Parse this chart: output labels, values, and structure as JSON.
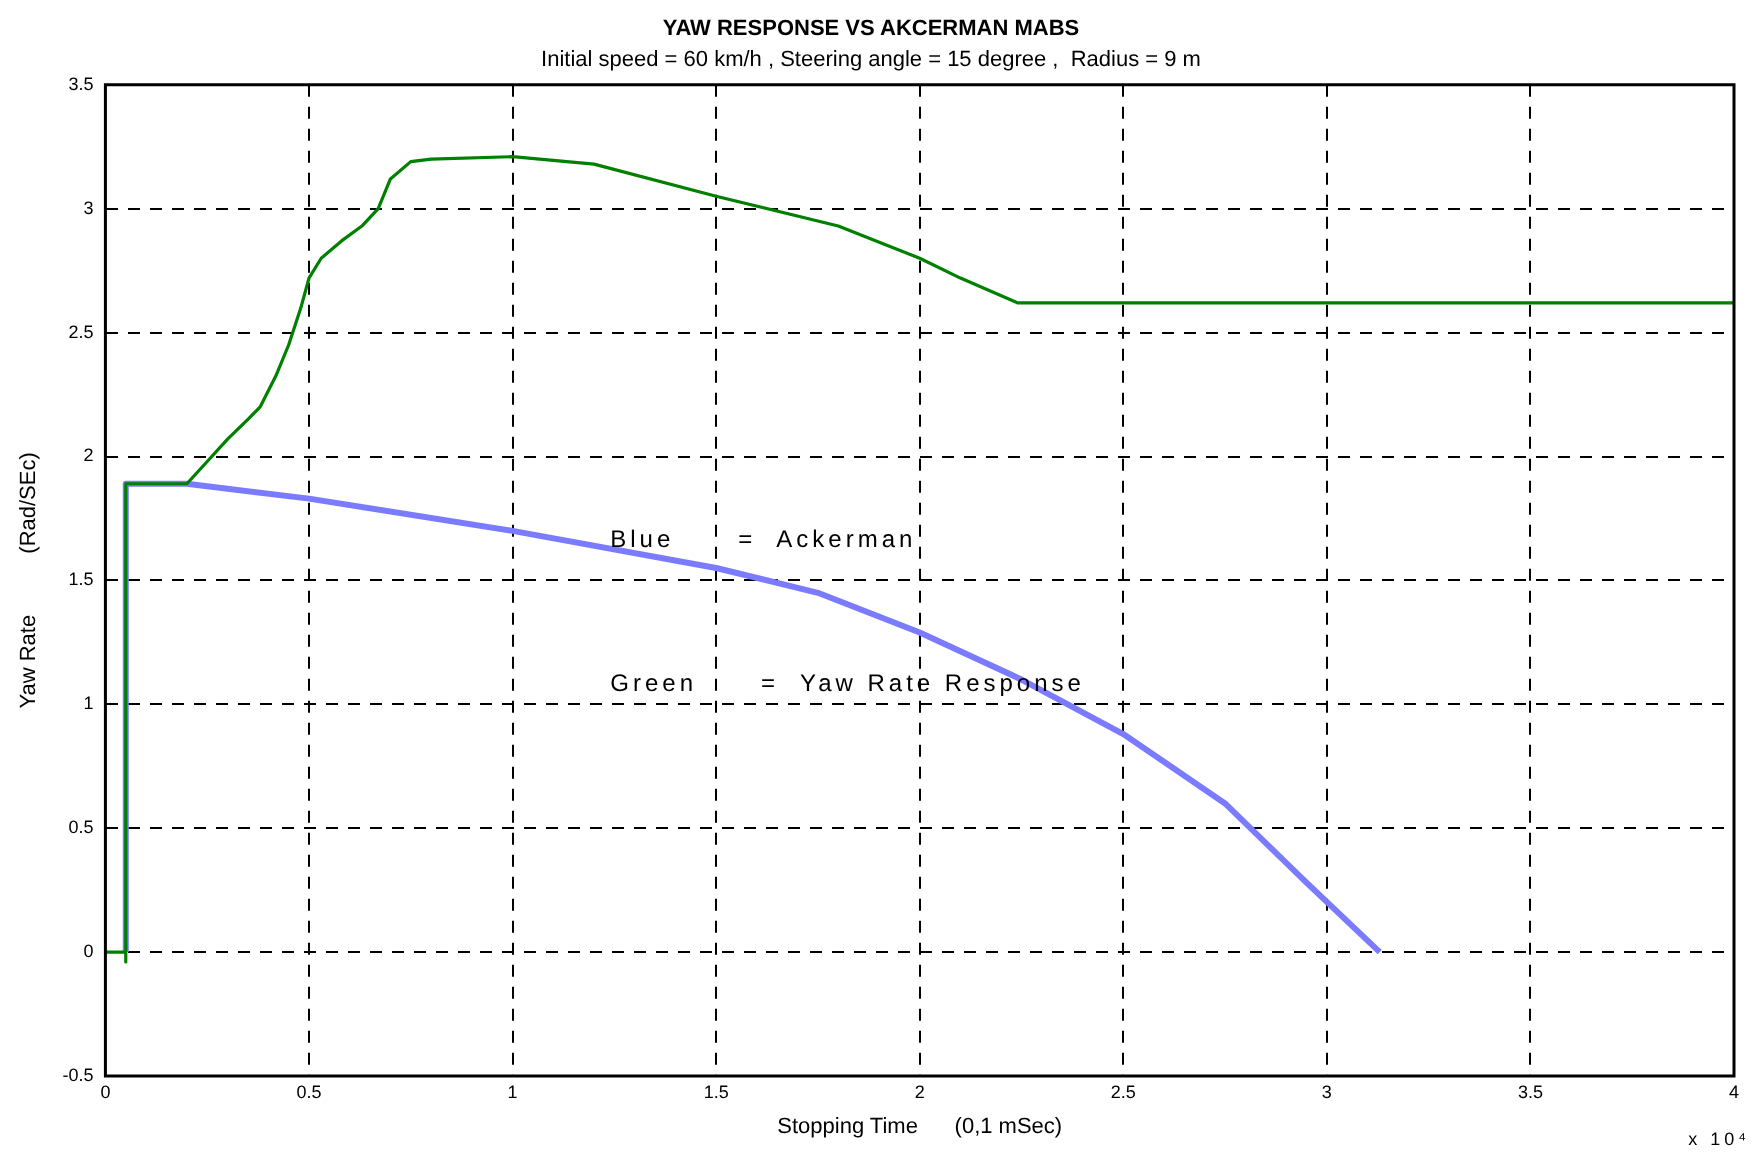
{
  "chart_data": {
    "type": "line",
    "title": "YAW RESPONSE VS AKCERMAN MABS",
    "subtitle": "Initial speed = 60 km/h , Steering angle = 15 degree ,  Radius = 9 m",
    "xlabel": "Stopping Time      (0,1 mSec)",
    "ylabel": "Yaw Rate          (Rad/SEc)",
    "annotations": [
      "Blue      =  Ackerman",
      "Green      =  Yaw Rate Response",
      "x 10⁴"
    ],
    "series": [
      {
        "color": "#008000",
        "x": [
          0,
          0.05,
          0.05,
          0.05,
          0.2,
          0.25,
          0.3,
          0.35,
          0.38,
          0.42,
          0.45,
          0.48,
          0.5,
          0.53,
          0.58,
          0.63,
          0.67,
          0.7,
          0.75,
          0.8,
          1.0,
          1.2,
          1.5,
          1.8,
          2.0,
          2.1,
          2.24,
          4
        ],
        "values": [
          0,
          0,
          -0.04,
          1.89,
          1.89,
          1.98,
          2.07,
          2.15,
          2.2,
          2.33,
          2.45,
          2.6,
          2.72,
          2.8,
          2.87,
          2.93,
          3.0,
          3.12,
          3.19,
          3.2,
          3.21,
          3.18,
          3.05,
          2.93,
          2.8,
          2.72,
          2.62,
          2.62
        ]
      },
      {
        "color": "#7b7bff",
        "x": [
          0.05,
          0.05,
          0.2,
          0.5,
          1.0,
          1.5,
          1.75,
          2.0,
          2.25,
          2.5,
          2.75,
          2.95,
          3.13
        ],
        "values": [
          0,
          1.89,
          1.89,
          1.83,
          1.7,
          1.55,
          1.45,
          1.29,
          1.1,
          0.88,
          0.6,
          0.28,
          0
        ]
      }
    ],
    "xlim": [
      0,
      4
    ],
    "xticks": [
      0,
      0.5,
      1,
      1.5,
      2,
      2.5,
      3,
      3.5,
      4
    ],
    "ylim": [
      -0.5,
      3.5
    ],
    "yticks": [
      -0.5,
      0,
      0.5,
      1,
      1.5,
      2,
      2.5,
      3,
      3.5
    ],
    "grid": true,
    "legend": false,
    "marker": "none",
    "line_style": "solid"
  }
}
